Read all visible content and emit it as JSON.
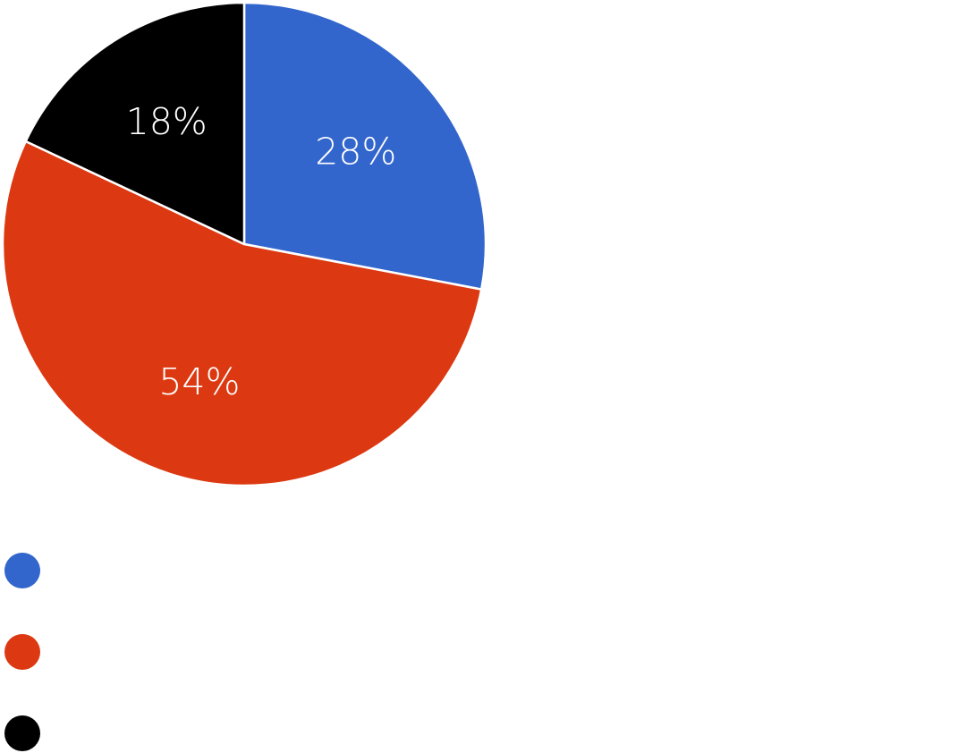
{
  "chart_data": {
    "type": "pie",
    "title": "",
    "legend_placement": "bottom-left",
    "slices": [
      {
        "label": "",
        "value": 28,
        "display": "28%",
        "color": "#3366CC"
      },
      {
        "label": "",
        "value": 54,
        "display": "54%",
        "color": "#DC3912"
      },
      {
        "label": "",
        "value": 18,
        "display": "18%",
        "color": "#000000"
      }
    ],
    "start_angle_deg": 0,
    "direction": "clockwise"
  }
}
